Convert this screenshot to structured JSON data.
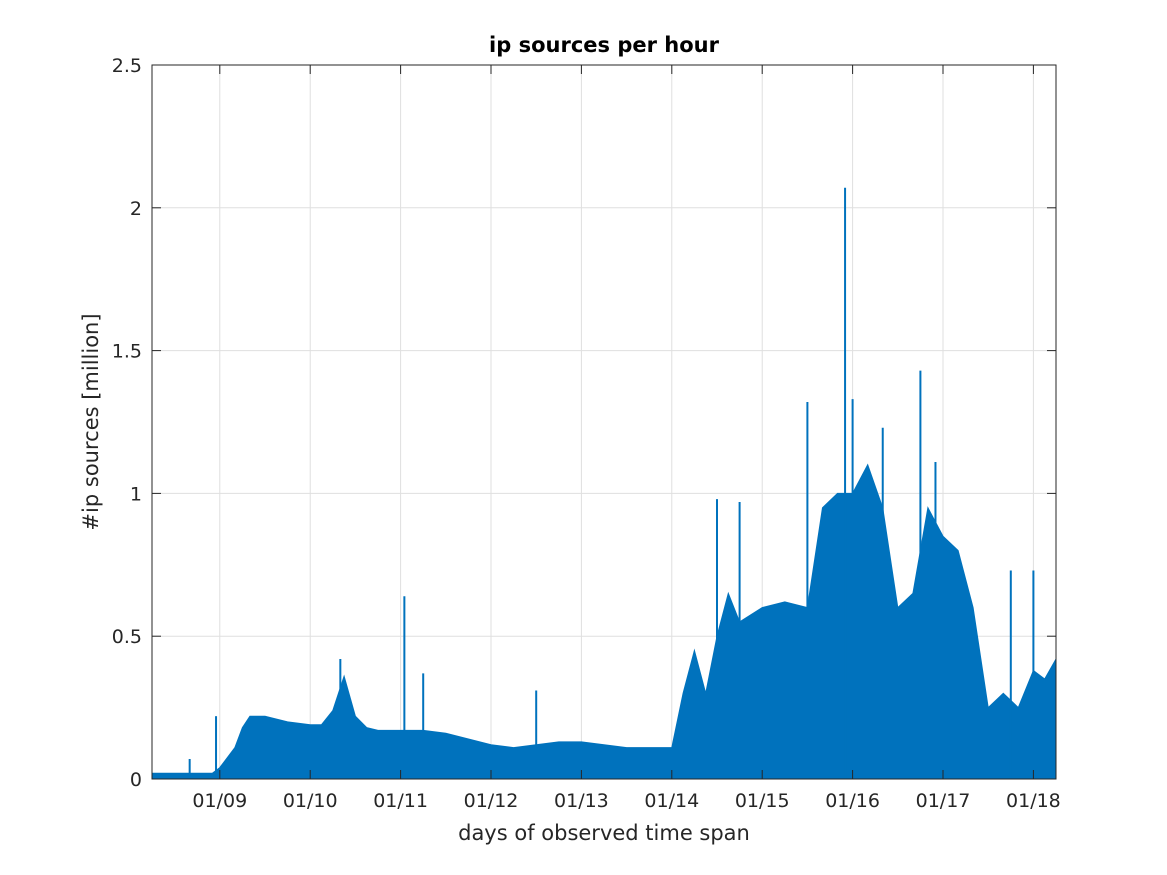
{
  "colors": {
    "series": "#0072BD",
    "axis": "#262626",
    "grid": "#dfdfdf",
    "background": "#ffffff"
  },
  "chart_data": {
    "type": "area",
    "title": "ip sources per hour",
    "xlabel": "days of observed time span",
    "ylabel": "#ip sources [million]",
    "grid": true,
    "box": true,
    "legend": "none",
    "x_axis": {
      "unit": "day",
      "range": [
        "01/08 06:00",
        "01/18 06:00"
      ],
      "ticks": [
        "01/09",
        "01/10",
        "01/11",
        "01/12",
        "01/13",
        "01/14",
        "01/15",
        "01/16",
        "01/17",
        "01/18"
      ]
    },
    "y_axis": {
      "range": [
        0,
        2.5
      ],
      "ticks": [
        "0",
        "0.5",
        "1",
        "1.5",
        "2",
        "2.5"
      ],
      "tick_values": [
        0,
        0.5,
        1,
        1.5,
        2,
        2.5
      ]
    },
    "series": [
      {
        "x": [
          "01/08 06:00",
          "01/08 12:00",
          "01/08 18:00",
          "01/08 22:00",
          "01/09 00:00",
          "01/09 04:00",
          "01/09 06:00",
          "01/09 08:00",
          "01/09 12:00",
          "01/09 18:00",
          "01/10 00:00",
          "01/10 03:00",
          "01/10 06:00",
          "01/10 09:00",
          "01/10 12:00",
          "01/10 15:00",
          "01/10 18:00",
          "01/11 00:00",
          "01/11 06:00",
          "01/11 12:00",
          "01/11 18:00",
          "01/12 00:00",
          "01/12 06:00",
          "01/12 12:00",
          "01/12 18:00",
          "01/13 00:00",
          "01/13 06:00",
          "01/13 12:00",
          "01/13 18:00",
          "01/14 00:00",
          "01/14 03:00",
          "01/14 06:00",
          "01/14 09:00",
          "01/14 12:00",
          "01/14 15:00",
          "01/14 18:00",
          "01/15 00:00",
          "01/15 06:00",
          "01/15 12:00",
          "01/15 16:00",
          "01/15 20:00",
          "01/16 00:00",
          "01/16 04:00",
          "01/16 08:00",
          "01/16 12:00",
          "01/16 16:00",
          "01/16 20:00",
          "01/17 00:00",
          "01/17 04:00",
          "01/17 08:00",
          "01/17 12:00",
          "01/17 16:00",
          "01/17 20:00",
          "01/18 00:00",
          "01/18 03:00",
          "01/18 06:00"
        ],
        "y": [
          0.02,
          0.02,
          0.02,
          0.02,
          0.04,
          0.11,
          0.18,
          0.22,
          0.22,
          0.2,
          0.19,
          0.19,
          0.24,
          0.36,
          0.22,
          0.18,
          0.17,
          0.17,
          0.17,
          0.16,
          0.14,
          0.12,
          0.11,
          0.12,
          0.13,
          0.13,
          0.12,
          0.11,
          0.11,
          0.11,
          0.3,
          0.45,
          0.3,
          0.5,
          0.65,
          0.55,
          0.6,
          0.62,
          0.6,
          0.95,
          1.0,
          1.0,
          1.1,
          0.95,
          0.6,
          0.65,
          0.95,
          0.85,
          0.8,
          0.6,
          0.25,
          0.3,
          0.25,
          0.38,
          0.35,
          0.42
        ],
        "spikes": [
          {
            "x": "01/08 16:00",
            "y": 0.07
          },
          {
            "x": "01/08 23:00",
            "y": 0.22
          },
          {
            "x": "01/10 08:00",
            "y": 0.42
          },
          {
            "x": "01/11 01:00",
            "y": 0.64
          },
          {
            "x": "01/11 06:00",
            "y": 0.37
          },
          {
            "x": "01/12 12:00",
            "y": 0.31
          },
          {
            "x": "01/14 12:00",
            "y": 0.98
          },
          {
            "x": "01/14 18:00",
            "y": 0.97
          },
          {
            "x": "01/15 12:00",
            "y": 1.32
          },
          {
            "x": "01/15 22:00",
            "y": 2.07
          },
          {
            "x": "01/16 00:00",
            "y": 1.33
          },
          {
            "x": "01/16 08:00",
            "y": 1.23
          },
          {
            "x": "01/16 18:00",
            "y": 1.43
          },
          {
            "x": "01/16 22:00",
            "y": 1.11
          },
          {
            "x": "01/17 18:00",
            "y": 0.73
          },
          {
            "x": "01/18 00:00",
            "y": 0.73
          }
        ]
      }
    ]
  }
}
